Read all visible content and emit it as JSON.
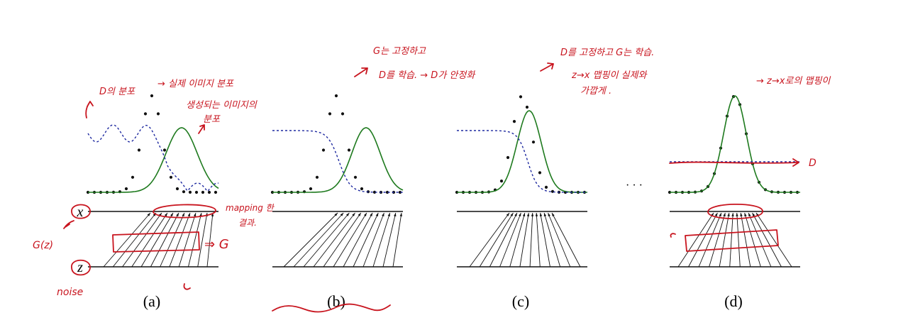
{
  "figure": {
    "axis_x_label": "x",
    "axis_z_label": "z",
    "ellipsis": "· · ·",
    "colors": {
      "data_dots": "#111111",
      "generator_curve": "#1e7a1e",
      "discriminator": "#1f2aa0",
      "annotation": "#c8141e",
      "axis": "#111111"
    },
    "panels": [
      {
        "label": "(a)"
      },
      {
        "label": "(b)"
      },
      {
        "label": "(c)"
      },
      {
        "label": "(d)"
      }
    ]
  },
  "annotations": {
    "a_d_dist": "D의 분포",
    "a_real_dist": "→ 실제 이미지 분포",
    "a_gen_dist_1": "생성되는 이미지의",
    "a_gen_dist_2": "분포",
    "a_mapping_1": "mapping 한",
    "a_mapping_2": "결과.",
    "a_g_arrow": "⇒ G",
    "a_gz": "G(z)",
    "a_noise": "noise",
    "b_note_1": "G는 고정하고",
    "b_note_2": "D를 학습. → D가 안정화",
    "c_note_1": "D를 고정하고 G는 학습.",
    "c_note_2": "z→x 맵핑이 실제와",
    "c_note_3": "가깝게 .",
    "d_note": "→ z→x로의 맵핑이",
    "d_d_label": "D"
  }
}
